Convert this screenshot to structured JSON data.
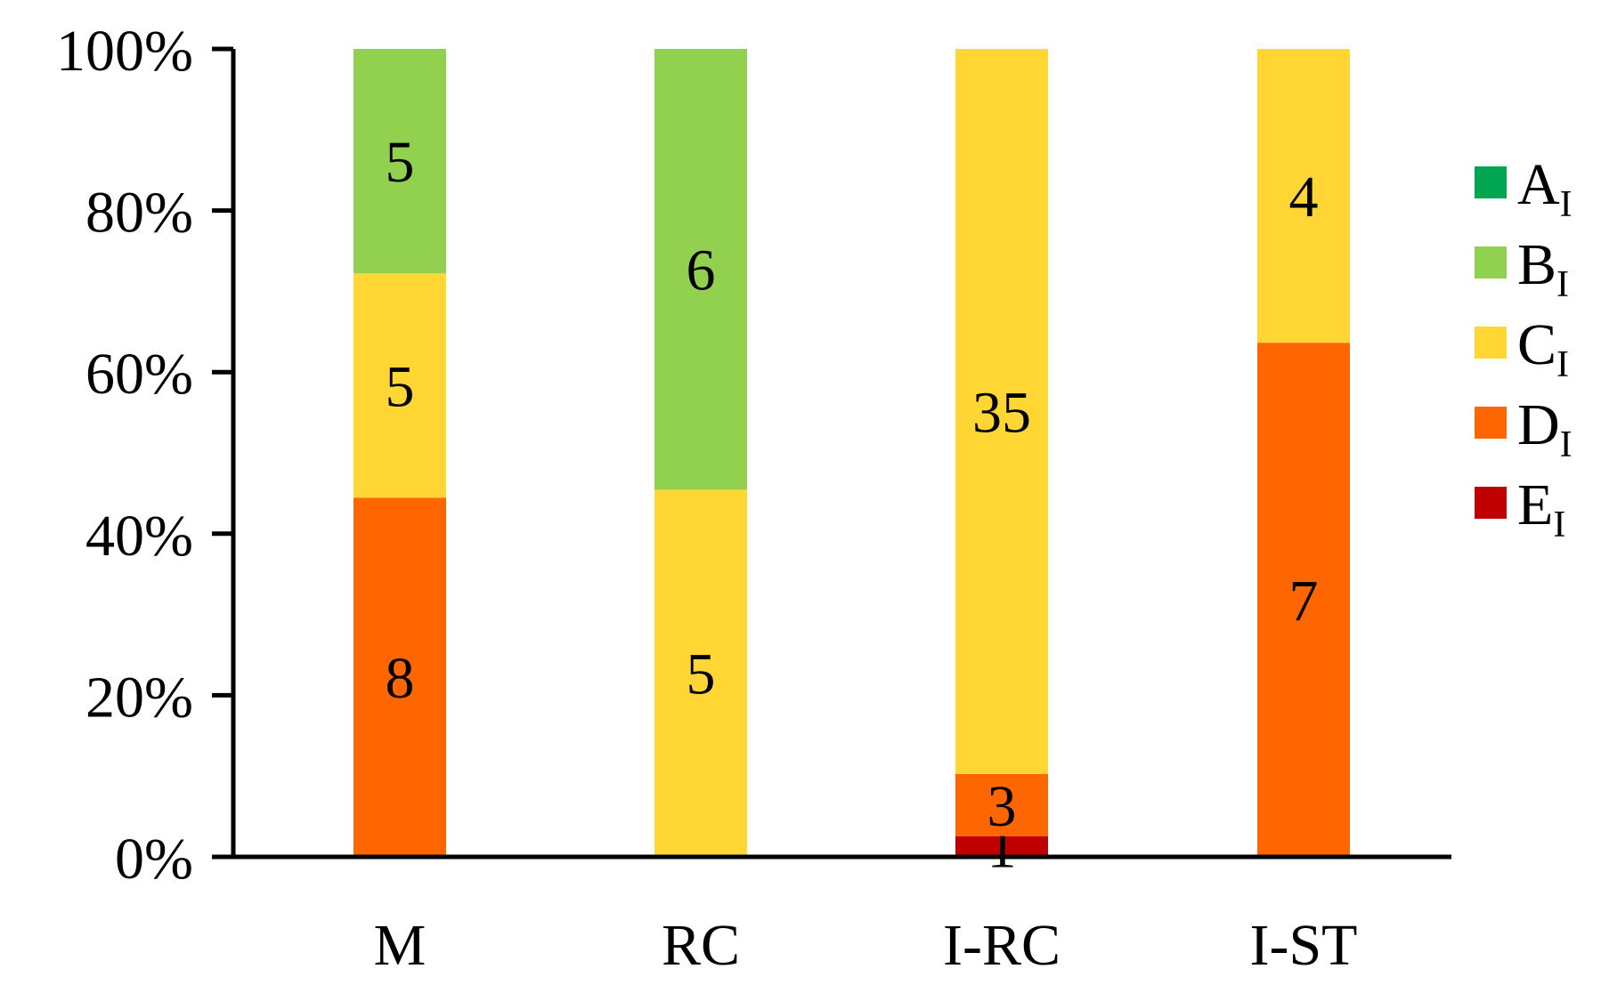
{
  "chart_data": {
    "type": "bar",
    "stacked": true,
    "normalized_percent": true,
    "categories": [
      "M",
      "RC",
      "I-RC",
      "I-ST"
    ],
    "series": [
      {
        "name": "A",
        "subscript": "I",
        "color": "#00A650",
        "values": [
          0,
          0,
          0,
          0
        ]
      },
      {
        "name": "B",
        "subscript": "I",
        "color": "#92D050",
        "values": [
          5,
          6,
          0,
          0
        ]
      },
      {
        "name": "C",
        "subscript": "I",
        "color": "#FFD633",
        "values": [
          5,
          5,
          35,
          4
        ]
      },
      {
        "name": "D",
        "subscript": "I",
        "color": "#FF6600",
        "values": [
          8,
          0,
          3,
          7
        ]
      },
      {
        "name": "E",
        "subscript": "I",
        "color": "#C00000",
        "values": [
          0,
          0,
          1,
          0
        ]
      }
    ],
    "stack_order_bottom_to_top": [
      "E",
      "D",
      "C",
      "B",
      "A"
    ],
    "y_ticks": [
      "0%",
      "20%",
      "40%",
      "60%",
      "80%",
      "100%"
    ],
    "ylim": [
      0,
      100
    ],
    "legend_position": "right",
    "grid": false
  }
}
